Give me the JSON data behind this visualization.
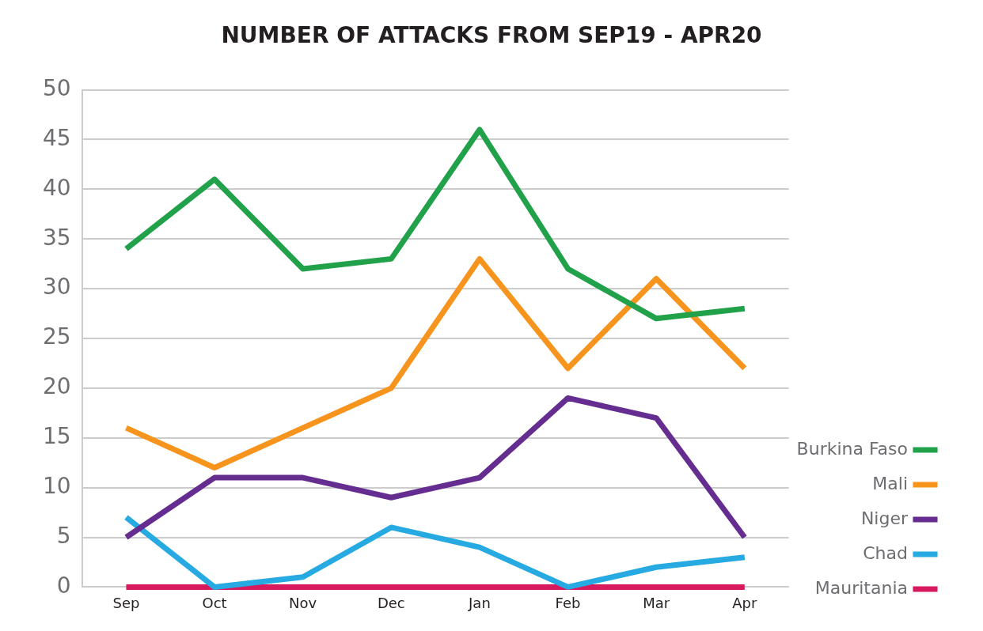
{
  "chart_data": {
    "type": "line",
    "title": "NUMBER OF ATTACKS FROM SEP19 - APR20",
    "categories": [
      "Sep",
      "Oct",
      "Nov",
      "Dec",
      "Jan",
      "Feb",
      "Mar",
      "Apr"
    ],
    "series": [
      {
        "name": "Burkina Faso",
        "color": "#21a24a",
        "values": [
          34,
          41,
          32,
          33,
          46,
          32,
          27,
          28
        ]
      },
      {
        "name": "Mali",
        "color": "#f7941d",
        "values": [
          16,
          12,
          16,
          20,
          33,
          22,
          31,
          22
        ]
      },
      {
        "name": "Niger",
        "color": "#662d91",
        "values": [
          5,
          11,
          11,
          9,
          11,
          19,
          17,
          5
        ]
      },
      {
        "name": "Chad",
        "color": "#27aae1",
        "values": [
          7,
          0,
          1,
          6,
          4,
          0,
          2,
          3
        ]
      },
      {
        "name": "Mauritania",
        "color": "#d7195e",
        "values": [
          0,
          0,
          0,
          0,
          0,
          0,
          0,
          0
        ]
      }
    ],
    "ylim": [
      0,
      50
    ],
    "yticks": [
      0,
      5,
      10,
      15,
      20,
      25,
      30,
      35,
      40,
      45,
      50
    ],
    "grid": "y",
    "legend": "right",
    "marker": "none",
    "line_style": "solid"
  }
}
